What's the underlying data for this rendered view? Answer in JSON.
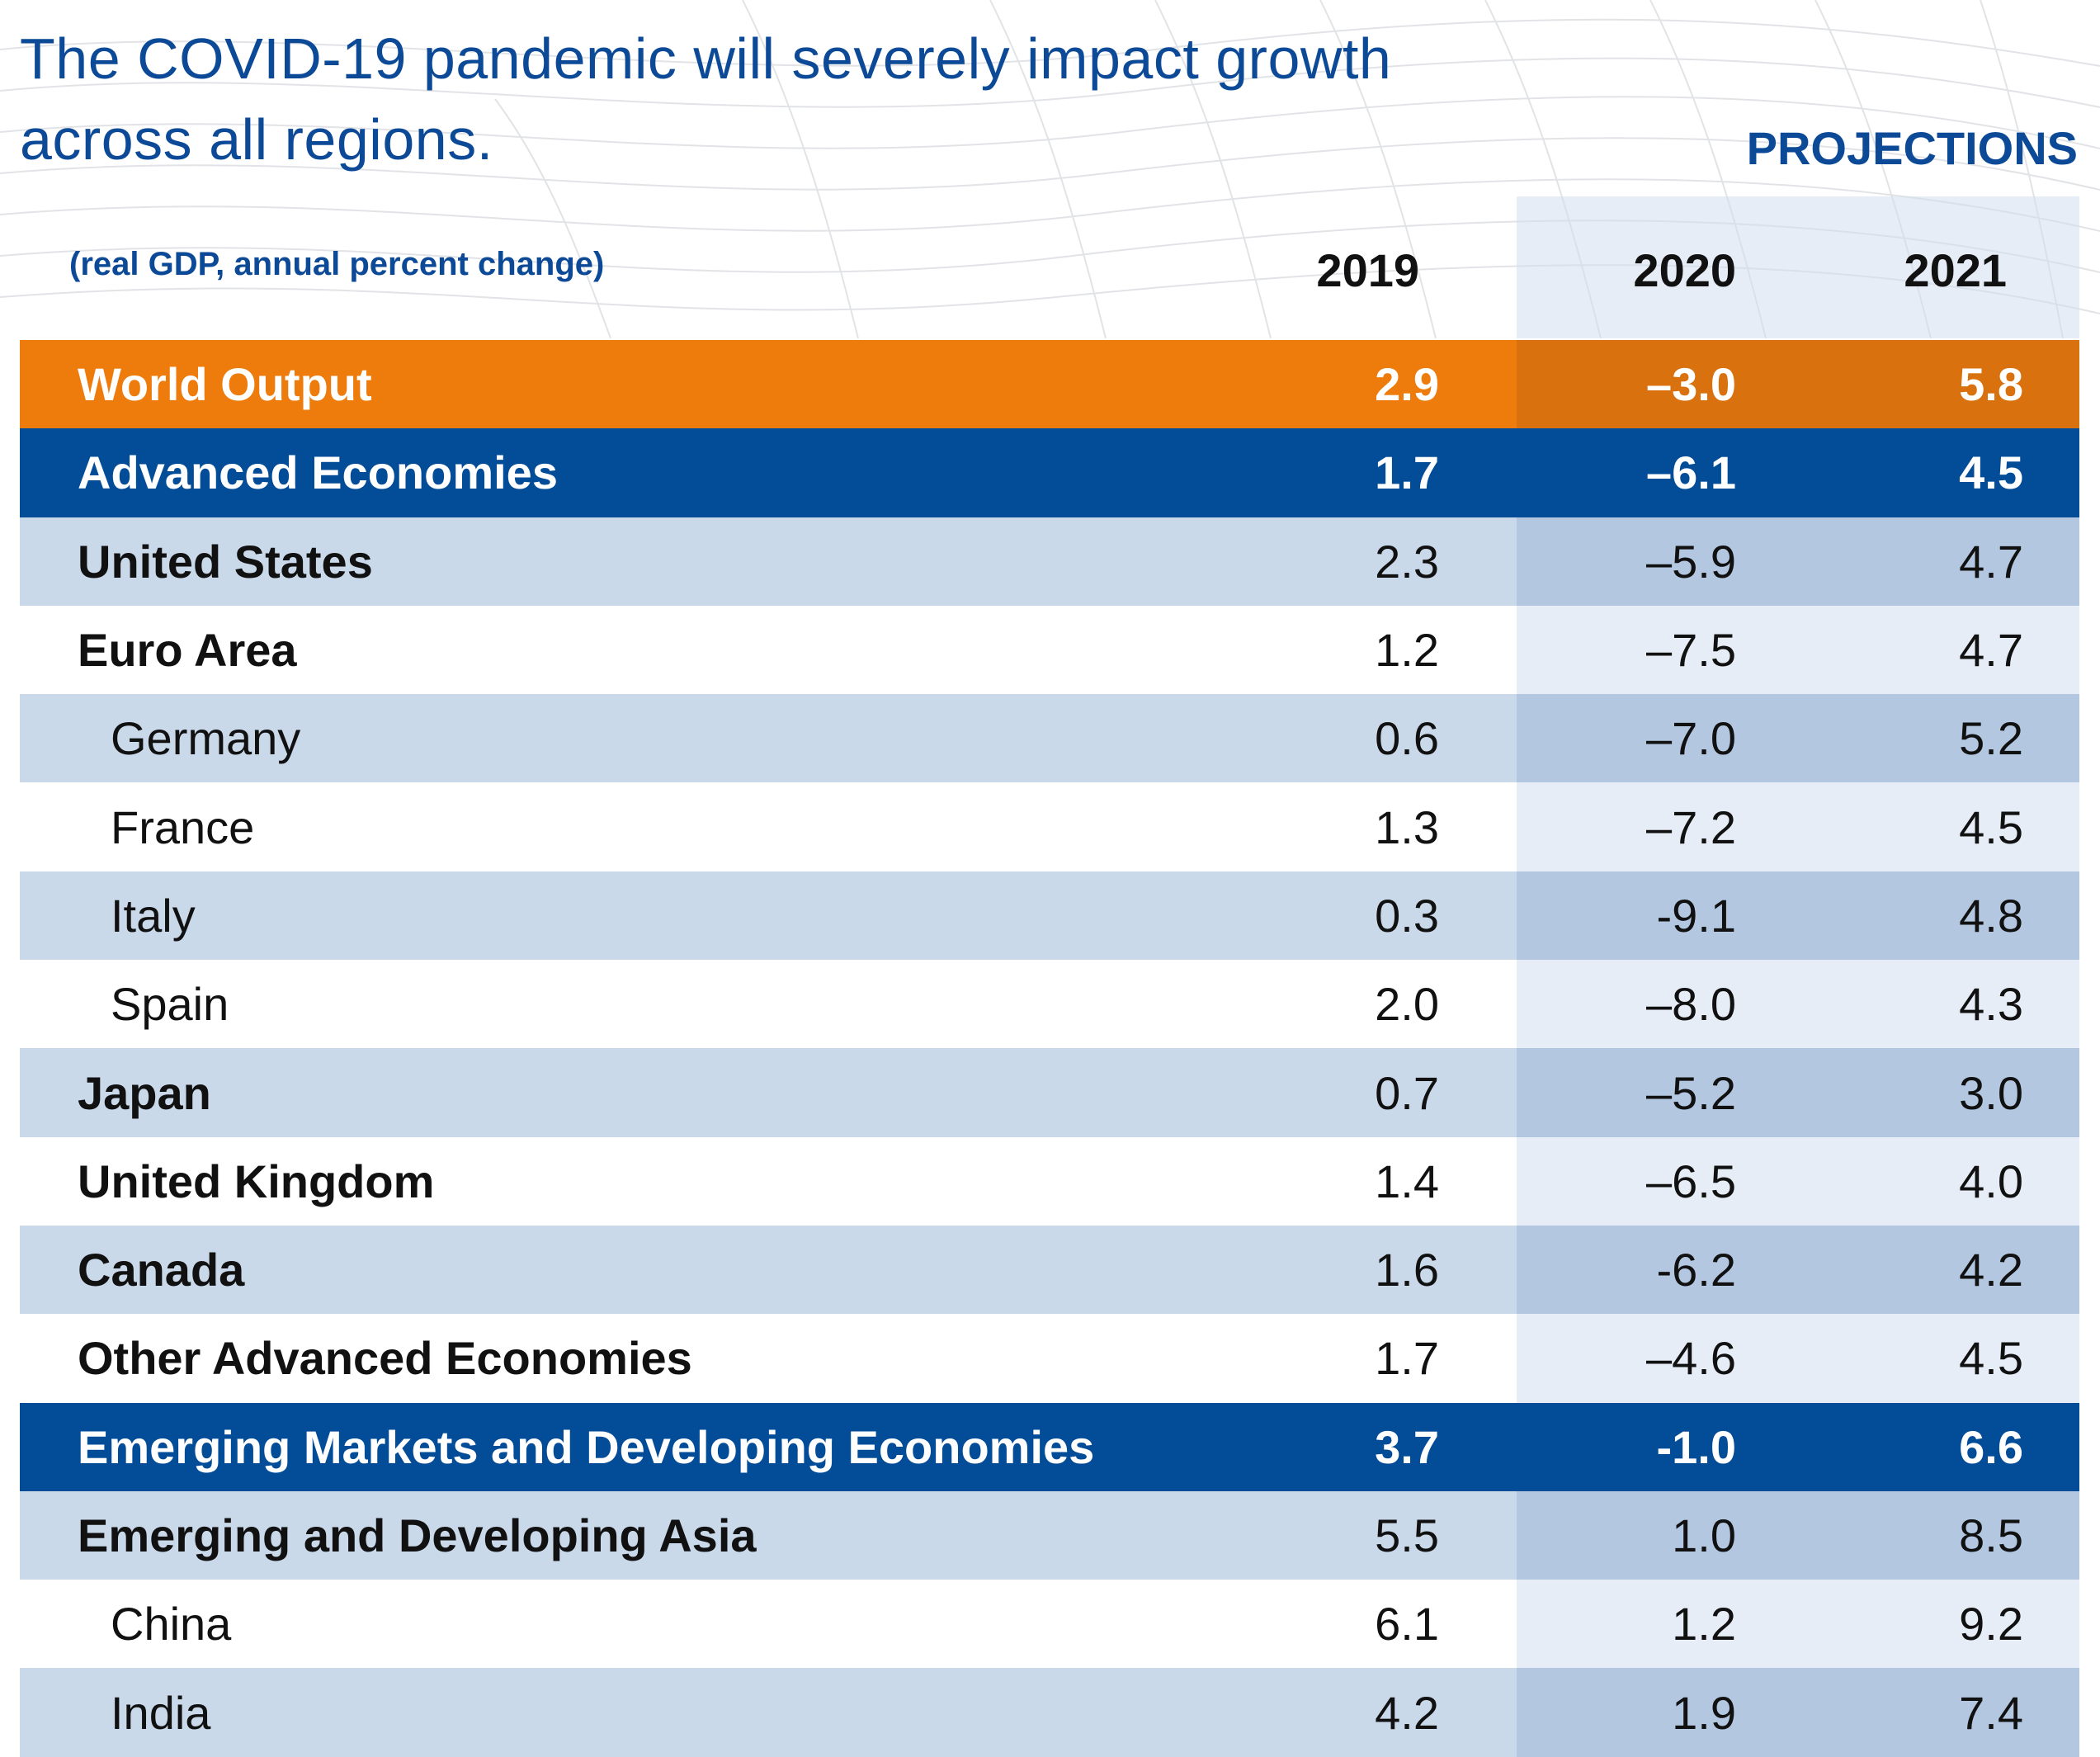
{
  "header": {
    "title": "The COVID-19 pandemic will severely impact growth across all regions.",
    "projections_label": "PROJECTIONS",
    "subtitle": "(real GDP, annual percent change)",
    "years": [
      "2019",
      "2020",
      "2021"
    ]
  },
  "colors": {
    "brand_blue": "#0c4a97",
    "world_orange": "#ee7c0c",
    "aggregate_blue": "#034c98",
    "row_shade": "#cad9ea",
    "projection_shade": "#b3c7e0"
  },
  "chart_data": {
    "type": "table",
    "title": "The COVID-19 pandemic will severely impact growth across all regions.",
    "subtitle": "(real GDP, annual percent change)",
    "columns": [
      "2019",
      "2020",
      "2021"
    ],
    "projection_columns": [
      "2020",
      "2021"
    ],
    "rows": [
      {
        "label": "World Output",
        "v2019": "2.9",
        "v2020": "–3.0",
        "v2021": "5.8",
        "style": "world"
      },
      {
        "label": "Advanced Economies",
        "v2019": "1.7",
        "v2020": "–6.1",
        "v2021": "4.5",
        "style": "aggregate"
      },
      {
        "label": "United States",
        "v2019": "2.3",
        "v2020": "–5.9",
        "v2021": "4.7",
        "style": "bold"
      },
      {
        "label": "Euro Area",
        "v2019": "1.2",
        "v2020": "–7.5",
        "v2021": "4.7",
        "style": "bold"
      },
      {
        "label": "Germany",
        "v2019": "0.6",
        "v2020": "–7.0",
        "v2021": "5.2",
        "style": "sub"
      },
      {
        "label": "France",
        "v2019": "1.3",
        "v2020": "–7.2",
        "v2021": "4.5",
        "style": "sub"
      },
      {
        "label": "Italy",
        "v2019": "0.3",
        "v2020": "-9.1",
        "v2021": "4.8",
        "style": "sub"
      },
      {
        "label": "Spain",
        "v2019": "2.0",
        "v2020": "–8.0",
        "v2021": "4.3",
        "style": "sub"
      },
      {
        "label": "Japan",
        "v2019": "0.7",
        "v2020": "–5.2",
        "v2021": "3.0",
        "style": "bold"
      },
      {
        "label": "United Kingdom",
        "v2019": "1.4",
        "v2020": "–6.5",
        "v2021": "4.0",
        "style": "bold"
      },
      {
        "label": "Canada",
        "v2019": "1.6",
        "v2020": "-6.2",
        "v2021": "4.2",
        "style": "bold"
      },
      {
        "label": "Other Advanced Economies",
        "v2019": "1.7",
        "v2020": "–4.6",
        "v2021": "4.5",
        "style": "bold"
      },
      {
        "label": "Emerging Markets and Developing Economies",
        "v2019": "3.7",
        "v2020": "-1.0",
        "v2021": "6.6",
        "style": "aggregate"
      },
      {
        "label": "Emerging and Developing Asia",
        "v2019": "5.5",
        "v2020": "1.0",
        "v2021": "8.5",
        "style": "bold"
      },
      {
        "label": "China",
        "v2019": "6.1",
        "v2020": "1.2",
        "v2021": "9.2",
        "style": "sub"
      },
      {
        "label": "India",
        "v2019": "4.2",
        "v2020": "1.9",
        "v2021": "7.4",
        "style": "sub"
      }
    ]
  }
}
